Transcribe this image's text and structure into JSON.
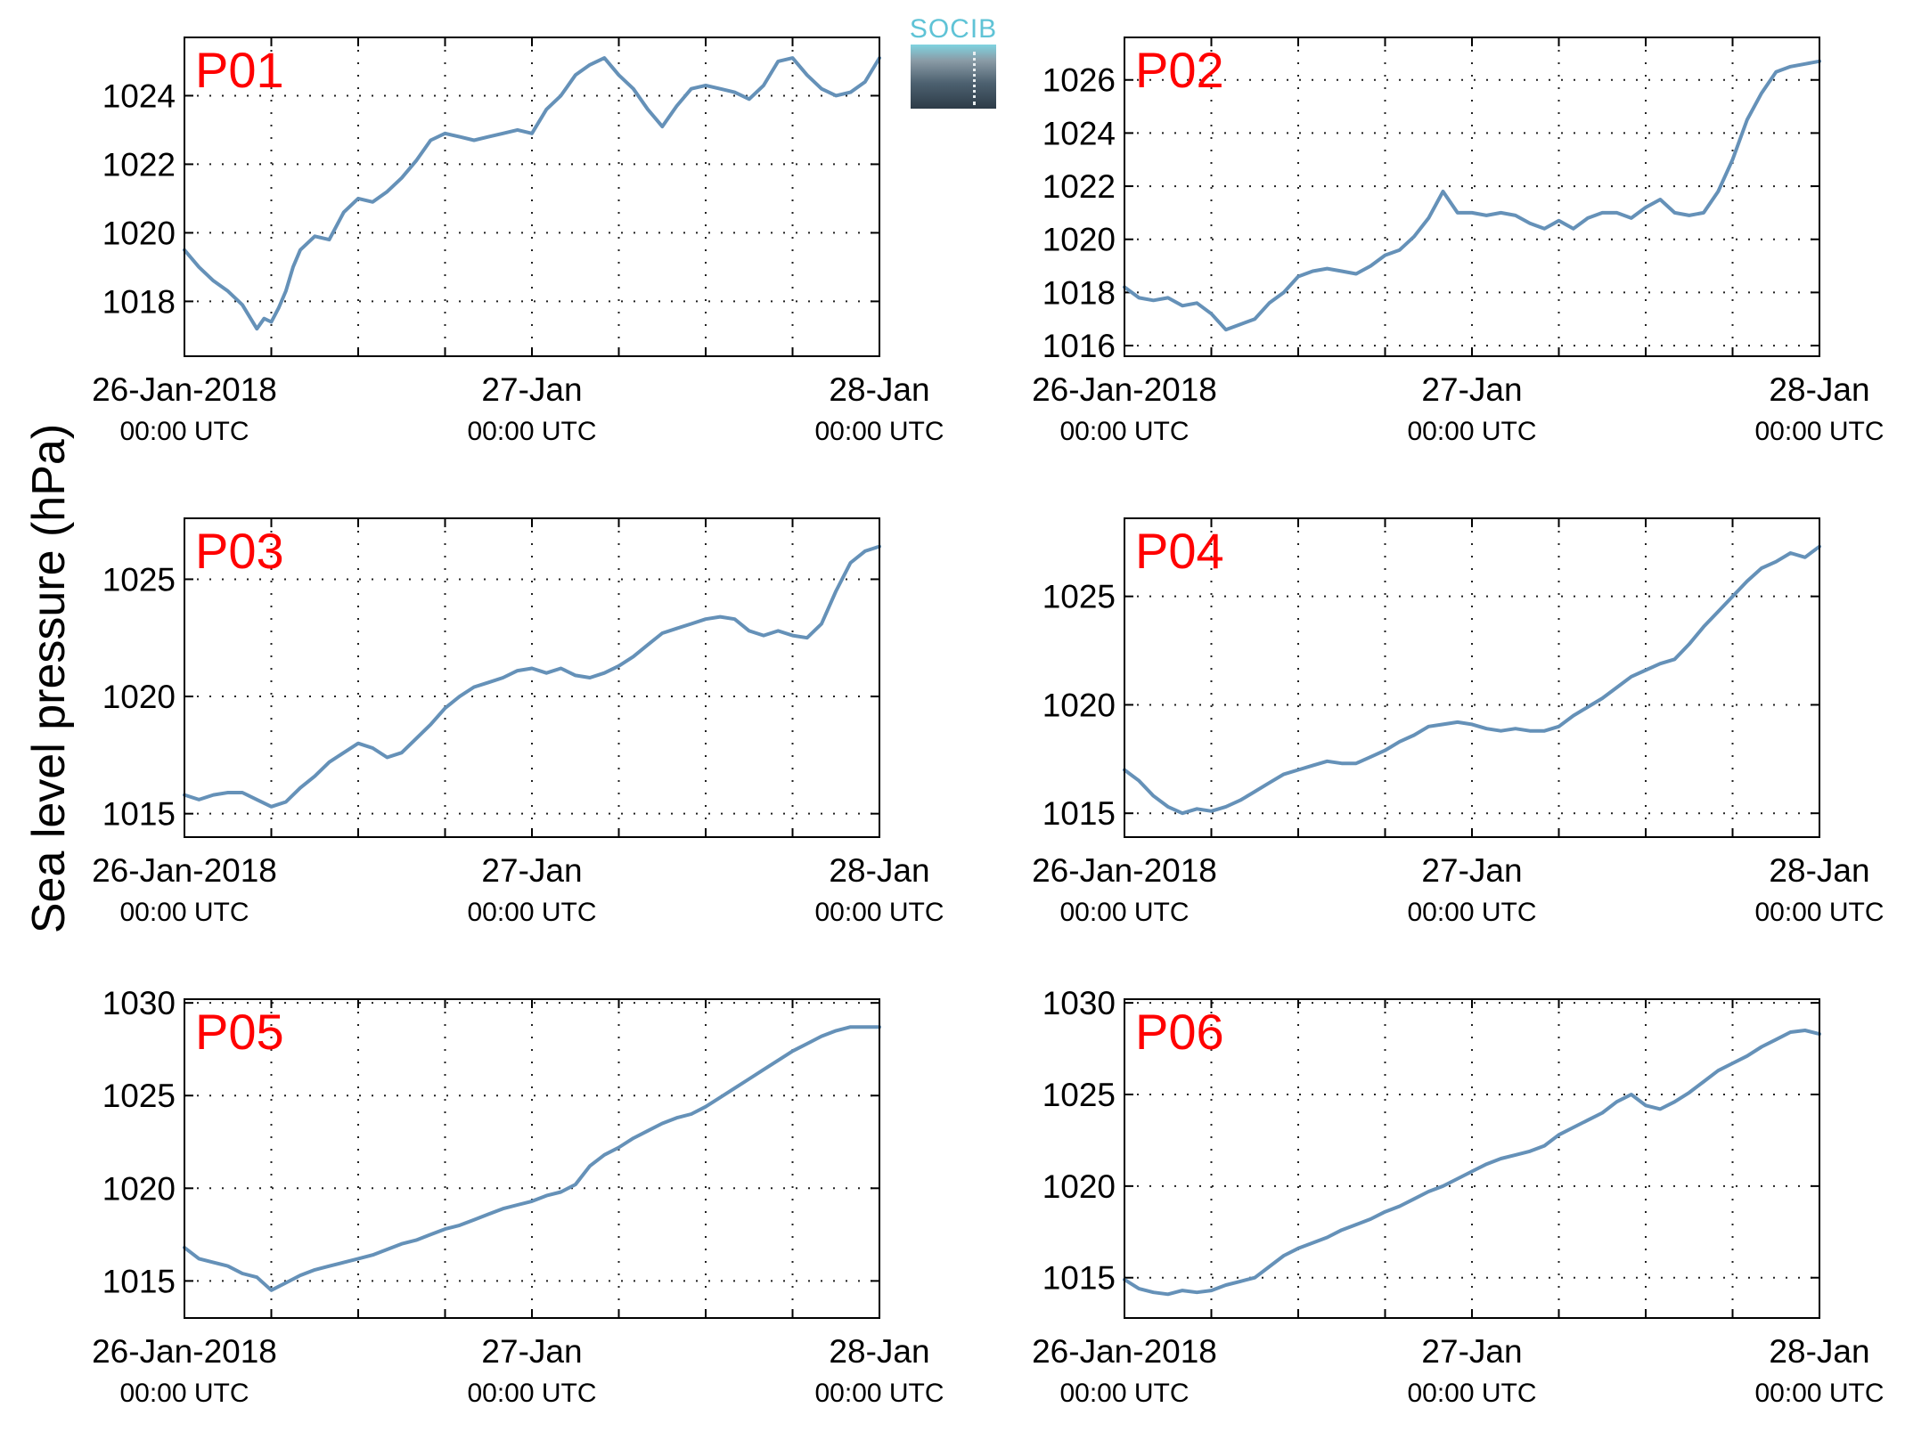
{
  "figure": {
    "ylabel": "Sea level pressure (hPa)",
    "logo_text": "SOCIB",
    "line_color": "#6591b8",
    "label_color": "#ff0000"
  },
  "chart_data": [
    {
      "type": "line",
      "title": "P01",
      "x_ticks": [
        {
          "label": "26-Jan-2018",
          "sub": "00:00 UTC"
        },
        {
          "label": "27-Jan",
          "sub": "00:00 UTC"
        },
        {
          "label": "28-Jan",
          "sub": "00:00 UTC"
        }
      ],
      "x_range_hours": [
        0,
        48
      ],
      "ylim": [
        1016.4,
        1025.7
      ],
      "yticks": [
        1018,
        1020,
        1022,
        1024
      ],
      "grid": true,
      "series": [
        {
          "x": [
            0,
            1,
            2,
            3,
            4,
            5,
            5.5,
            6,
            6.5,
            7,
            7.5,
            8,
            9,
            10,
            11,
            12,
            13,
            14,
            15,
            16,
            17,
            18,
            19,
            20,
            21,
            22,
            23,
            24,
            25,
            26,
            27,
            28,
            29,
            30,
            31,
            32,
            33,
            34,
            35,
            36,
            37,
            38,
            39,
            40,
            41,
            42,
            43,
            44,
            45,
            46,
            47,
            48
          ],
          "y": [
            1019.5,
            1019.0,
            1018.6,
            1018.3,
            1017.9,
            1017.2,
            1017.5,
            1017.4,
            1017.8,
            1018.3,
            1019.0,
            1019.5,
            1019.9,
            1019.8,
            1020.6,
            1021.0,
            1020.9,
            1021.2,
            1021.6,
            1022.1,
            1022.7,
            1022.9,
            1022.8,
            1022.7,
            1022.8,
            1022.9,
            1023.0,
            1022.9,
            1023.6,
            1024.0,
            1024.6,
            1024.9,
            1025.1,
            1024.6,
            1024.2,
            1023.6,
            1023.1,
            1023.7,
            1024.2,
            1024.3,
            1024.2,
            1024.1,
            1023.9,
            1024.3,
            1025.0,
            1025.1,
            1024.6,
            1024.2,
            1024.0,
            1024.1,
            1024.4,
            1025.1
          ]
        }
      ]
    },
    {
      "type": "line",
      "title": "P02",
      "x_ticks": [
        {
          "label": "26-Jan-2018",
          "sub": "00:00 UTC"
        },
        {
          "label": "27-Jan",
          "sub": "00:00 UTC"
        },
        {
          "label": "28-Jan",
          "sub": "00:00 UTC"
        }
      ],
      "x_range_hours": [
        0,
        48
      ],
      "ylim": [
        1015.6,
        1027.6
      ],
      "yticks": [
        1016,
        1018,
        1020,
        1022,
        1024,
        1026
      ],
      "grid": true,
      "series": [
        {
          "x": [
            0,
            1,
            2,
            3,
            4,
            5,
            6,
            7,
            8,
            9,
            10,
            11,
            12,
            13,
            14,
            15,
            16,
            17,
            18,
            19,
            20,
            21,
            22,
            23,
            24,
            25,
            26,
            27,
            28,
            29,
            30,
            31,
            32,
            33,
            34,
            35,
            36,
            37,
            38,
            39,
            40,
            41,
            42,
            43,
            44,
            45,
            46,
            47,
            48
          ],
          "y": [
            1018.2,
            1017.8,
            1017.7,
            1017.8,
            1017.5,
            1017.6,
            1017.2,
            1016.6,
            1016.8,
            1017.0,
            1017.6,
            1018.0,
            1018.6,
            1018.8,
            1018.9,
            1018.8,
            1018.7,
            1019.0,
            1019.4,
            1019.6,
            1020.1,
            1020.8,
            1021.8,
            1021.0,
            1021.0,
            1020.9,
            1021.0,
            1020.9,
            1020.6,
            1020.4,
            1020.7,
            1020.4,
            1020.8,
            1021.0,
            1021.0,
            1020.8,
            1021.2,
            1021.5,
            1021.0,
            1020.9,
            1021.0,
            1021.8,
            1023.0,
            1024.5,
            1025.5,
            1026.3,
            1026.5,
            1026.6,
            1026.7
          ]
        }
      ]
    },
    {
      "type": "line",
      "title": "P03",
      "x_ticks": [
        {
          "label": "26-Jan-2018",
          "sub": "00:00 UTC"
        },
        {
          "label": "27-Jan",
          "sub": "00:00 UTC"
        },
        {
          "label": "28-Jan",
          "sub": "00:00 UTC"
        }
      ],
      "x_range_hours": [
        0,
        48
      ],
      "ylim": [
        1014.0,
        1027.6
      ],
      "yticks": [
        1015,
        1020,
        1025
      ],
      "grid": true,
      "series": [
        {
          "x": [
            0,
            1,
            2,
            3,
            4,
            5,
            6,
            7,
            8,
            9,
            10,
            11,
            12,
            13,
            14,
            15,
            16,
            17,
            18,
            19,
            20,
            21,
            22,
            23,
            24,
            25,
            26,
            27,
            28,
            29,
            30,
            31,
            32,
            33,
            34,
            35,
            36,
            37,
            38,
            39,
            40,
            41,
            42,
            43,
            44,
            45,
            46,
            47,
            48
          ],
          "y": [
            1015.8,
            1015.6,
            1015.8,
            1015.9,
            1015.9,
            1015.6,
            1015.3,
            1015.5,
            1016.1,
            1016.6,
            1017.2,
            1017.6,
            1018.0,
            1017.8,
            1017.4,
            1017.6,
            1018.2,
            1018.8,
            1019.5,
            1020.0,
            1020.4,
            1020.6,
            1020.8,
            1021.1,
            1021.2,
            1021.0,
            1021.2,
            1020.9,
            1020.8,
            1021.0,
            1021.3,
            1021.7,
            1022.2,
            1022.7,
            1022.9,
            1023.1,
            1023.3,
            1023.4,
            1023.3,
            1022.8,
            1022.6,
            1022.8,
            1022.6,
            1022.5,
            1023.1,
            1024.5,
            1025.7,
            1026.2,
            1026.4
          ]
        }
      ]
    },
    {
      "type": "line",
      "title": "P04",
      "x_ticks": [
        {
          "label": "26-Jan-2018",
          "sub": "00:00 UTC"
        },
        {
          "label": "27-Jan",
          "sub": "00:00 UTC"
        },
        {
          "label": "28-Jan",
          "sub": "00:00 UTC"
        }
      ],
      "x_range_hours": [
        0,
        48
      ],
      "ylim": [
        1013.9,
        1028.6
      ],
      "yticks": [
        1015,
        1020,
        1025
      ],
      "grid": true,
      "series": [
        {
          "x": [
            0,
            1,
            2,
            3,
            4,
            5,
            6,
            7,
            8,
            9,
            10,
            11,
            12,
            13,
            14,
            15,
            16,
            17,
            18,
            19,
            20,
            21,
            22,
            23,
            24,
            25,
            26,
            27,
            28,
            29,
            30,
            31,
            32,
            33,
            34,
            35,
            36,
            37,
            38,
            39,
            40,
            41,
            42,
            43,
            44,
            45,
            46,
            47,
            48
          ],
          "y": [
            1017.0,
            1016.5,
            1015.8,
            1015.3,
            1015.0,
            1015.2,
            1015.1,
            1015.3,
            1015.6,
            1016.0,
            1016.4,
            1016.8,
            1017.0,
            1017.2,
            1017.4,
            1017.3,
            1017.3,
            1017.6,
            1017.9,
            1018.3,
            1018.6,
            1019.0,
            1019.1,
            1019.2,
            1019.1,
            1018.9,
            1018.8,
            1018.9,
            1018.8,
            1018.8,
            1019.0,
            1019.5,
            1019.9,
            1020.3,
            1020.8,
            1021.3,
            1021.6,
            1021.9,
            1022.1,
            1022.8,
            1023.6,
            1024.3,
            1025.0,
            1025.7,
            1026.3,
            1026.6,
            1027.0,
            1026.8,
            1027.3
          ]
        }
      ]
    },
    {
      "type": "line",
      "title": "P05",
      "x_ticks": [
        {
          "label": "26-Jan-2018",
          "sub": "00:00 UTC"
        },
        {
          "label": "27-Jan",
          "sub": "00:00 UTC"
        },
        {
          "label": "28-Jan",
          "sub": "00:00 UTC"
        }
      ],
      "x_range_hours": [
        0,
        48
      ],
      "ylim": [
        1013.0,
        1030.2
      ],
      "yticks": [
        1015,
        1020,
        1025,
        1030
      ],
      "grid": true,
      "series": [
        {
          "x": [
            0,
            1,
            2,
            3,
            4,
            5,
            6,
            7,
            8,
            9,
            10,
            11,
            12,
            13,
            14,
            15,
            16,
            17,
            18,
            19,
            20,
            21,
            22,
            23,
            24,
            25,
            26,
            27,
            28,
            29,
            30,
            31,
            32,
            33,
            34,
            35,
            36,
            37,
            38,
            39,
            40,
            41,
            42,
            43,
            44,
            45,
            46,
            47,
            48
          ],
          "y": [
            1016.8,
            1016.2,
            1016.0,
            1015.8,
            1015.4,
            1015.2,
            1014.5,
            1014.9,
            1015.3,
            1015.6,
            1015.8,
            1016.0,
            1016.2,
            1016.4,
            1016.7,
            1017.0,
            1017.2,
            1017.5,
            1017.8,
            1018.0,
            1018.3,
            1018.6,
            1018.9,
            1019.1,
            1019.3,
            1019.6,
            1019.8,
            1020.2,
            1021.2,
            1021.8,
            1022.2,
            1022.7,
            1023.1,
            1023.5,
            1023.8,
            1024.0,
            1024.4,
            1024.9,
            1025.4,
            1025.9,
            1026.4,
            1026.9,
            1027.4,
            1027.8,
            1028.2,
            1028.5,
            1028.7,
            1028.7,
            1028.7
          ]
        }
      ]
    },
    {
      "type": "line",
      "title": "P06",
      "x_ticks": [
        {
          "label": "26-Jan-2018",
          "sub": "00:00 UTC"
        },
        {
          "label": "27-Jan",
          "sub": "00:00 UTC"
        },
        {
          "label": "28-Jan",
          "sub": "00:00 UTC"
        }
      ],
      "x_range_hours": [
        0,
        48
      ],
      "ylim": [
        1012.8,
        1030.2
      ],
      "yticks": [
        1015,
        1020,
        1025,
        1030
      ],
      "grid": true,
      "series": [
        {
          "x": [
            0,
            1,
            2,
            3,
            4,
            5,
            6,
            7,
            8,
            9,
            10,
            11,
            12,
            13,
            14,
            15,
            16,
            17,
            18,
            19,
            20,
            21,
            22,
            23,
            24,
            25,
            26,
            27,
            28,
            29,
            30,
            31,
            32,
            33,
            34,
            35,
            36,
            37,
            38,
            39,
            40,
            41,
            42,
            43,
            44,
            45,
            46,
            47,
            48
          ],
          "y": [
            1014.9,
            1014.4,
            1014.2,
            1014.1,
            1014.3,
            1014.2,
            1014.3,
            1014.6,
            1014.8,
            1015.0,
            1015.6,
            1016.2,
            1016.6,
            1016.9,
            1017.2,
            1017.6,
            1017.9,
            1018.2,
            1018.6,
            1018.9,
            1019.3,
            1019.7,
            1020.0,
            1020.4,
            1020.8,
            1021.2,
            1021.5,
            1021.7,
            1021.9,
            1022.2,
            1022.8,
            1023.2,
            1023.6,
            1024.0,
            1024.6,
            1025.0,
            1024.4,
            1024.2,
            1024.6,
            1025.1,
            1025.7,
            1026.3,
            1026.7,
            1027.1,
            1027.6,
            1028.0,
            1028.4,
            1028.5,
            1028.3
          ]
        }
      ]
    }
  ]
}
